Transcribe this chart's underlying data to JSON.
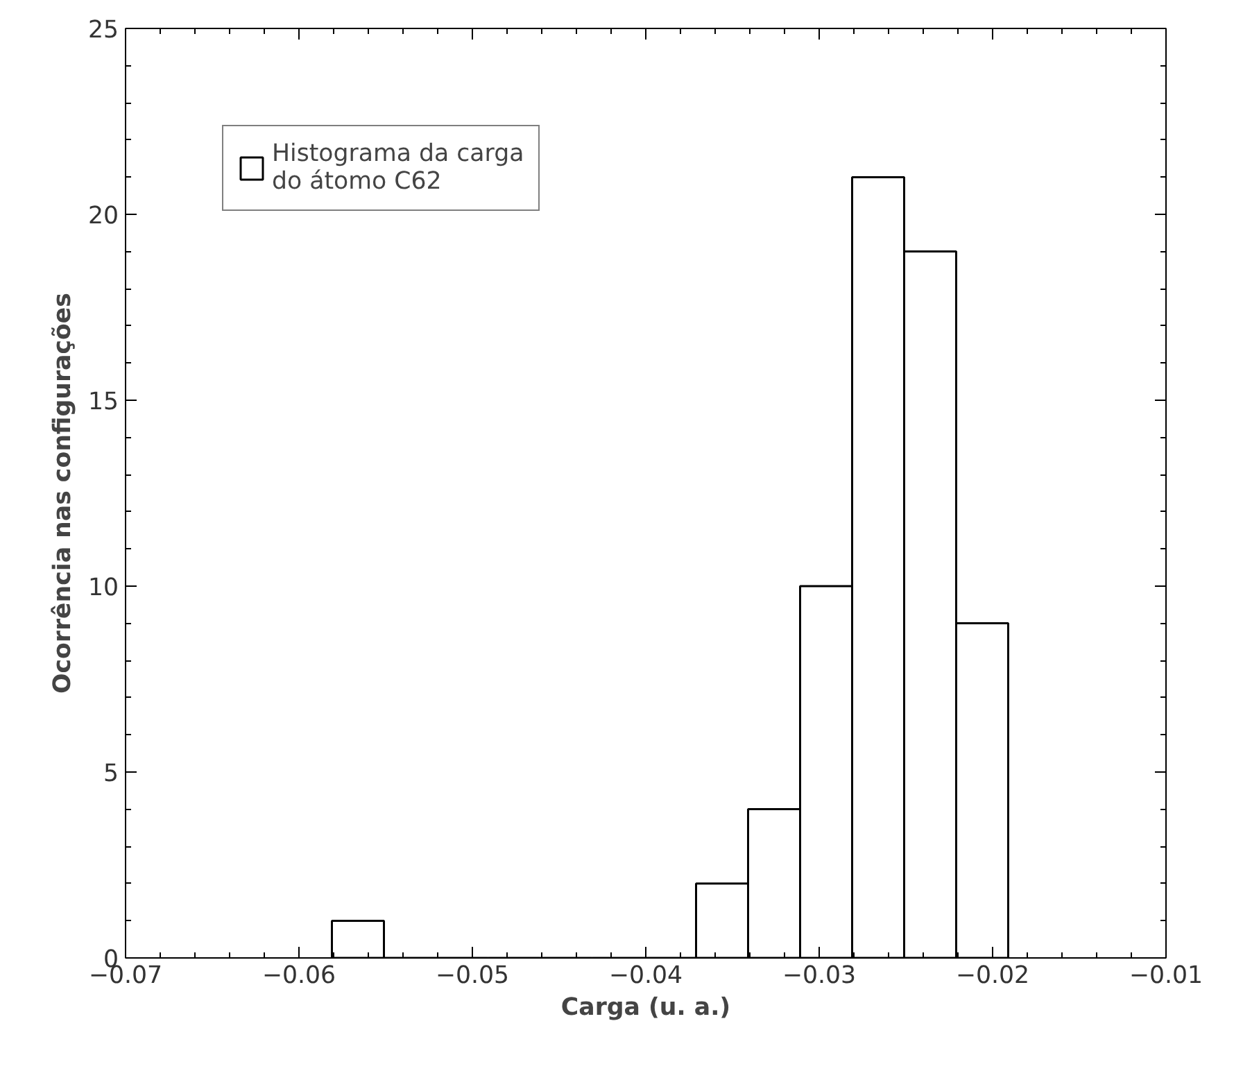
{
  "chart_data": {
    "type": "histogram",
    "xlabel": "Carga (u. a.)",
    "ylabel": "Ocorrência nas configurações",
    "bins": [
      -0.0581,
      -0.0551,
      -0.0521,
      -0.0491,
      -0.0461,
      -0.0431,
      -0.0401,
      -0.0371,
      -0.0341,
      -0.0311,
      -0.0281,
      -0.0251,
      -0.0221,
      -0.0191
    ],
    "series": [
      {
        "name": "Histograma da carga\ndo átomo C62",
        "color": "#ffffff",
        "values": [
          1,
          0,
          0,
          0,
          0,
          0,
          0,
          2,
          4,
          10,
          21,
          19,
          9
        ]
      }
    ],
    "xlim": [
      -0.07,
      -0.01
    ],
    "xticks": [
      {
        "value": -0.07,
        "label": "−0.07"
      },
      {
        "value": -0.06,
        "label": "−0.06"
      },
      {
        "value": -0.05,
        "label": "−0.05"
      },
      {
        "value": -0.04,
        "label": "−0.04"
      },
      {
        "value": -0.03,
        "label": "−0.03"
      },
      {
        "value": -0.02,
        "label": "−0.02"
      },
      {
        "value": -0.01,
        "label": "−0.01"
      }
    ],
    "ylim": [
      0,
      25
    ],
    "yticks": [
      0,
      5,
      10,
      15,
      20,
      25
    ],
    "legend": "top left",
    "grid": false
  }
}
